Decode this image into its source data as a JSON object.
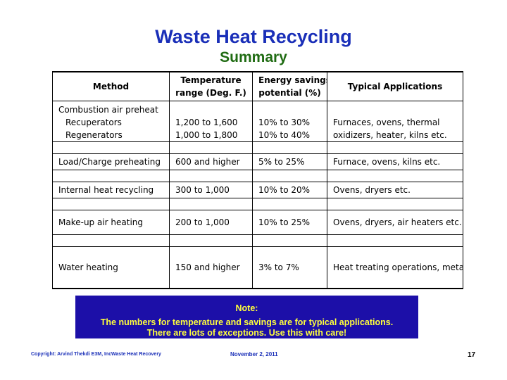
{
  "title": "Waste Heat Recycling",
  "subtitle": "Summary",
  "table": {
    "headers": {
      "method": "Method",
      "temp_line1": "Temperature",
      "temp_line2": "range (Deg. F.)",
      "energy_line1": "Energy savings",
      "energy_line2": "potential (%)",
      "apps": "Typical Applications"
    },
    "combustion": {
      "label": "Combustion air preheat",
      "recuperators": {
        "method": "Recuperators",
        "temp": "1,200 to 1,600",
        "savings": "10% to 30%",
        "apps": "Furnaces, ovens, thermal"
      },
      "regenerators": {
        "method": "Regenerators",
        "temp": "1,000 to 1,800",
        "savings": "10% to 40%",
        "apps": "oxidizers, heater, kilns etc."
      }
    },
    "load": {
      "method": "Load/Charge preheating",
      "temp": "600 and higher",
      "savings": "5% to 25%",
      "apps": "Furnace, ovens, kilns etc."
    },
    "internal": {
      "method": "Internal heat recycling",
      "temp": "300 to 1,000",
      "savings": "10% to 20%",
      "apps": "Ovens, dryers etc."
    },
    "makeup": {
      "method": "Make-up air heating",
      "temp": "200 to 1,000",
      "savings": "10% to 25%",
      "apps": "Ovens, dryers, air heaters etc."
    },
    "water": {
      "method": "Water heating",
      "temp": "150 and higher",
      "savings": "3% to 7%",
      "apps": "Heat treating operations, metal coating, ceramic kilns, etc."
    }
  },
  "note": {
    "heading": "Note:",
    "line1": "The numbers for temperature and savings are for typical applications.",
    "line2": "There are lots of exceptions.   Use this with care!"
  },
  "footer": {
    "copyright": "Copyright: Arvind Thekdi E3M, Inc",
    "topic": "Waste Heat Recovery",
    "date": "November 2, 2011",
    "page": "17"
  }
}
